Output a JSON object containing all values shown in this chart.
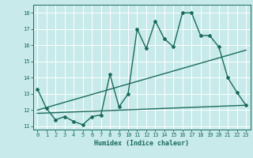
{
  "title": "",
  "xlabel": "Humidex (Indice chaleur)",
  "bg_color": "#c8eaea",
  "grid_color": "#ffffff",
  "line_color": "#1a6b5a",
  "xlim": [
    -0.5,
    23.5
  ],
  "ylim": [
    10.8,
    18.5
  ],
  "xticks": [
    0,
    1,
    2,
    3,
    4,
    5,
    6,
    7,
    8,
    9,
    10,
    11,
    12,
    13,
    14,
    15,
    16,
    17,
    18,
    19,
    20,
    21,
    22,
    23
  ],
  "yticks": [
    11,
    12,
    13,
    14,
    15,
    16,
    17,
    18
  ],
  "series1_x": [
    0,
    1,
    2,
    3,
    4,
    5,
    6,
    7,
    8,
    9,
    10,
    11,
    12,
    13,
    14,
    15,
    16,
    17,
    18,
    19,
    20,
    21,
    22,
    23
  ],
  "series1_y": [
    13.3,
    12.1,
    11.4,
    11.6,
    11.3,
    11.1,
    11.6,
    11.7,
    14.2,
    12.2,
    13.0,
    17.0,
    15.8,
    17.5,
    16.4,
    15.9,
    18.0,
    18.0,
    16.6,
    16.6,
    15.9,
    14.0,
    13.1,
    12.3
  ],
  "series2_x": [
    0,
    23
  ],
  "series2_y": [
    12.0,
    15.7
  ],
  "series3_x": [
    0,
    23
  ],
  "series3_y": [
    11.8,
    12.3
  ],
  "marker_size": 2.0,
  "line_width": 1.0
}
